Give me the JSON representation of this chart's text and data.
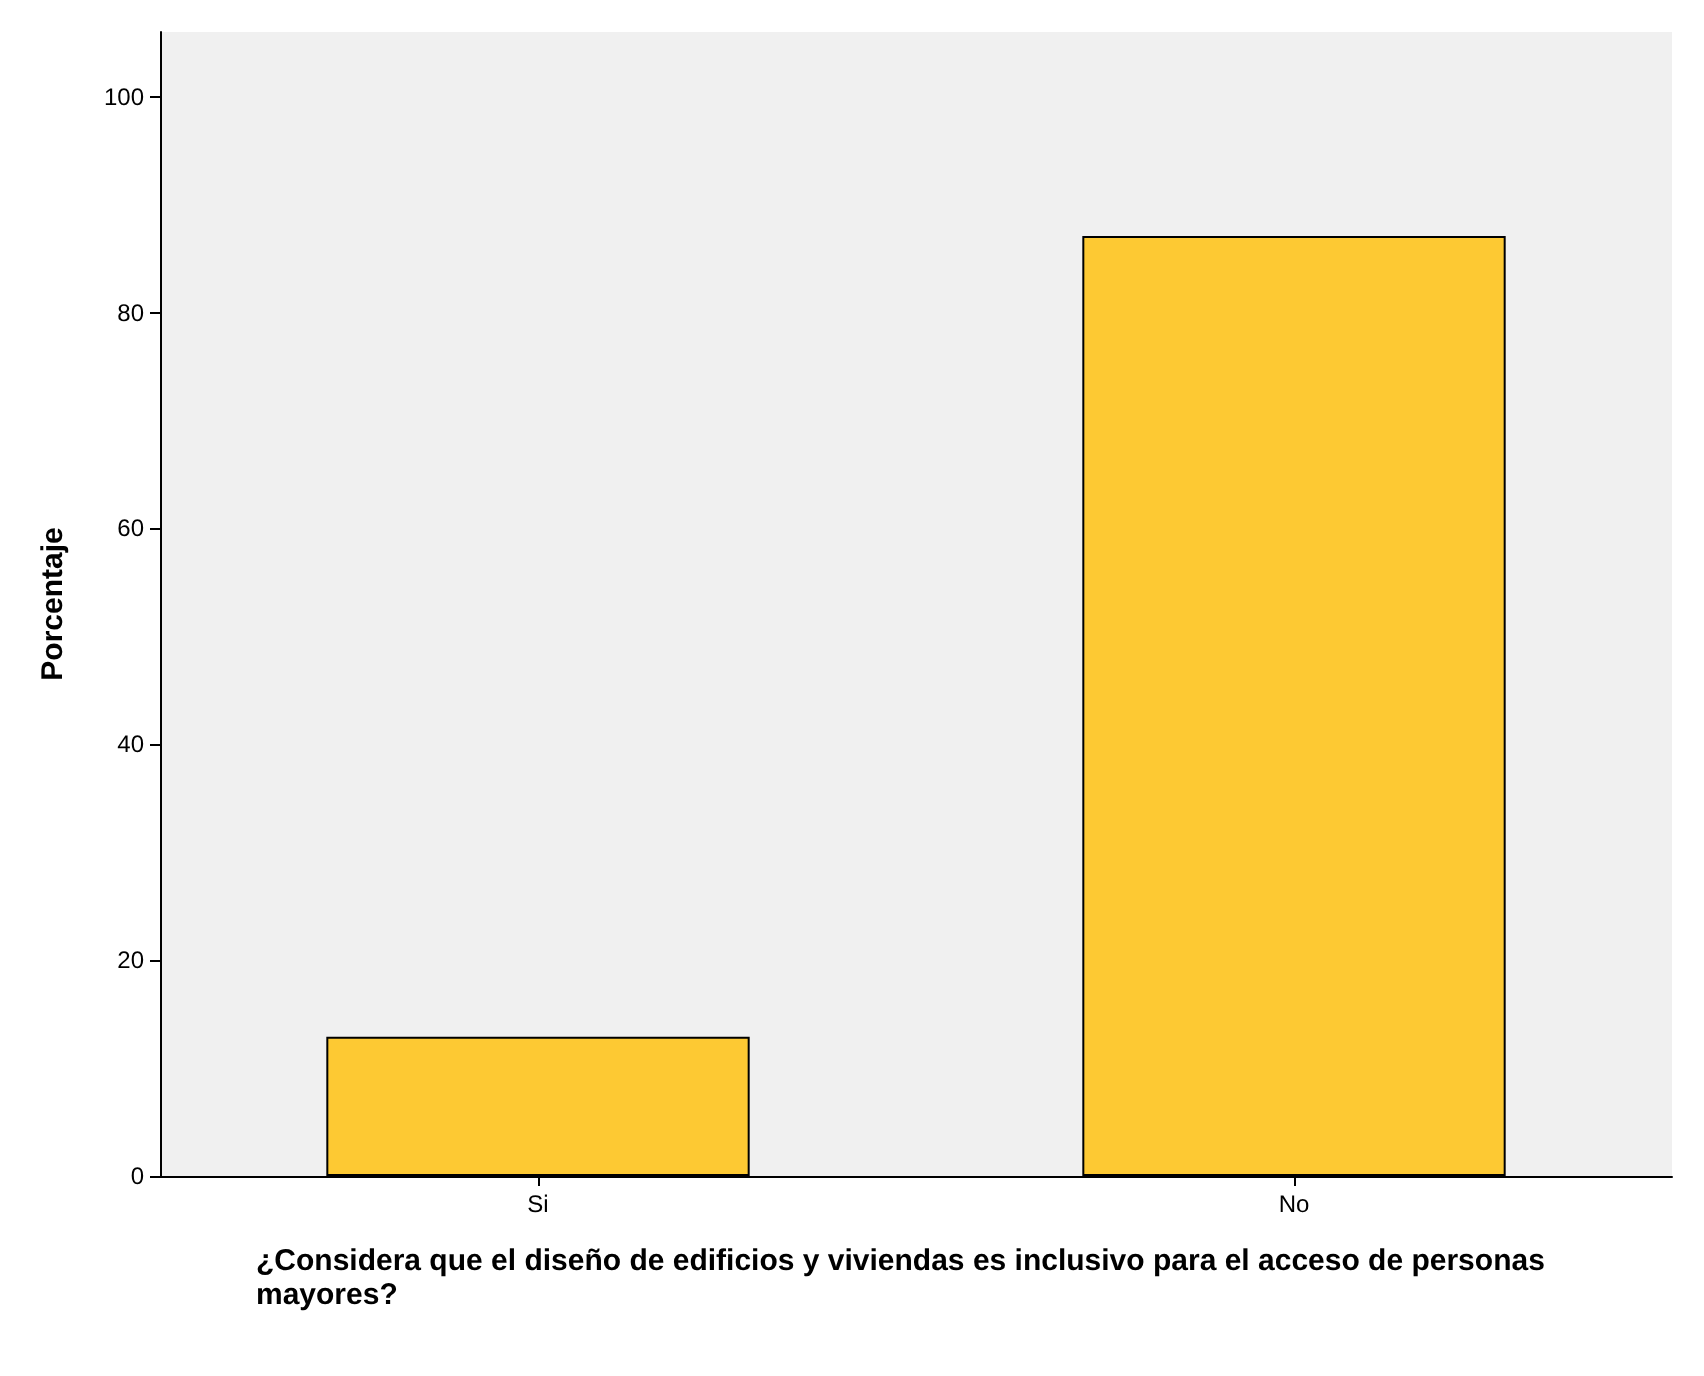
{
  "chart_data": {
    "type": "bar",
    "xlabel": "¿Considera que el diseño de edificios y viviendas es inclusivo para el acceso de personas mayores?",
    "ylabel": "Porcentaje",
    "categories": [
      "Si",
      "No"
    ],
    "values": [
      12.9,
      87.1
    ],
    "color": "#fdc933",
    "ylim": [
      0,
      106
    ],
    "yticks": [
      0,
      20,
      40,
      60,
      80,
      100
    ],
    "grid": false
  }
}
